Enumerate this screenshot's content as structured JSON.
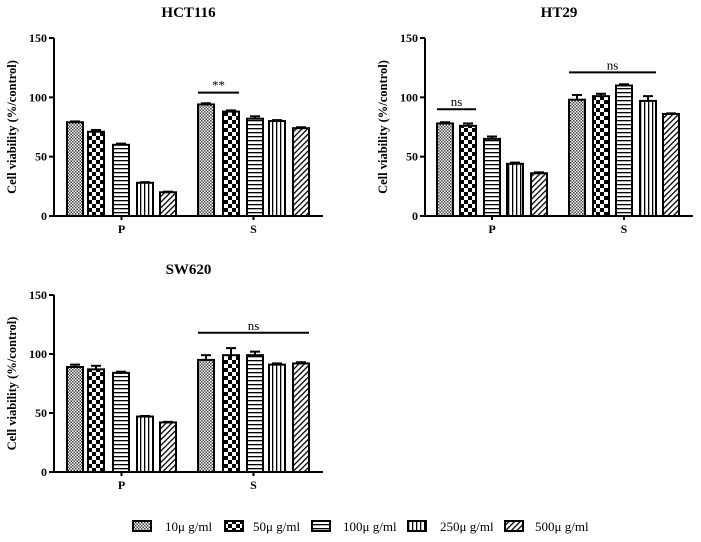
{
  "chart_data": [
    {
      "type": "bar",
      "title": "HCT116",
      "ylabel": "Cell viability (%/control)",
      "xlabel": "",
      "ylim": [
        0,
        150
      ],
      "yticks": [
        0,
        50,
        100,
        150
      ],
      "categories": [
        "P",
        "S"
      ],
      "series": [
        {
          "name": "10μ g/ml",
          "values": [
            79,
            94
          ],
          "errors": [
            0.7,
            1
          ]
        },
        {
          "name": "50μ g/ml",
          "values": [
            71,
            88
          ],
          "errors": [
            1.5,
            1
          ]
        },
        {
          "name": "100μ g/ml",
          "values": [
            60,
            82
          ],
          "errors": [
            1,
            2
          ]
        },
        {
          "name": "250μ g/ml",
          "values": [
            28,
            80
          ],
          "errors": [
            0.5,
            0.8
          ]
        },
        {
          "name": "500μ g/ml",
          "values": [
            20,
            74
          ],
          "errors": [
            0.5,
            0.8
          ]
        }
      ],
      "annotations": [
        {
          "text": "**",
          "category": "S",
          "from_series": 0,
          "to_series": 1,
          "y": 104
        }
      ]
    },
    {
      "type": "bar",
      "title": "HT29",
      "ylabel": "Cell viability (%/control)",
      "xlabel": "",
      "ylim": [
        0,
        150
      ],
      "yticks": [
        0,
        50,
        100,
        150
      ],
      "categories": [
        "P",
        "S"
      ],
      "series": [
        {
          "name": "10μ g/ml",
          "values": [
            78,
            98
          ],
          "errors": [
            1,
            4
          ]
        },
        {
          "name": "50μ g/ml",
          "values": [
            76,
            101
          ],
          "errors": [
            2,
            2
          ]
        },
        {
          "name": "100μ g/ml",
          "values": [
            65,
            110
          ],
          "errors": [
            2,
            1
          ]
        },
        {
          "name": "250μ g/ml",
          "values": [
            44,
            97
          ],
          "errors": [
            1,
            4
          ]
        },
        {
          "name": "500μ g/ml",
          "values": [
            36,
            86
          ],
          "errors": [
            0.8,
            0.5
          ]
        }
      ],
      "annotations": [
        {
          "text": "ns",
          "category": "P",
          "from_series": 0,
          "to_series": 1,
          "y": 90
        },
        {
          "text": "ns",
          "category": "S",
          "from_series": 0,
          "to_series": 3,
          "y": 121
        }
      ]
    },
    {
      "type": "bar",
      "title": "SW620",
      "ylabel": "Cell viability (%/control)",
      "xlabel": "",
      "ylim": [
        0,
        150
      ],
      "yticks": [
        0,
        50,
        100,
        150
      ],
      "categories": [
        "P",
        "S"
      ],
      "series": [
        {
          "name": "10μ g/ml",
          "values": [
            89,
            95
          ],
          "errors": [
            2,
            4
          ]
        },
        {
          "name": "50μ g/ml",
          "values": [
            87,
            99
          ],
          "errors": [
            3,
            6
          ]
        },
        {
          "name": "100μ g/ml",
          "values": [
            84,
            99
          ],
          "errors": [
            1,
            3
          ]
        },
        {
          "name": "250μ g/ml",
          "values": [
            47,
            91
          ],
          "errors": [
            0.5,
            1
          ]
        },
        {
          "name": "500μ g/ml",
          "values": [
            42,
            92
          ],
          "errors": [
            0.5,
            1
          ]
        }
      ],
      "annotations": [
        {
          "text": "ns",
          "category": "S",
          "from_series": 0,
          "to_series": 4,
          "y": 118
        }
      ]
    }
  ],
  "legend": {
    "position": "bottom",
    "items": [
      {
        "label": "10μ g/ml",
        "pattern": "fine-checker"
      },
      {
        "label": "50μ g/ml",
        "pattern": "checkerboard"
      },
      {
        "label": "100μ g/ml",
        "pattern": "horizontal-lines"
      },
      {
        "label": "250μ g/ml",
        "pattern": "vertical-lines"
      },
      {
        "label": "500μ g/ml",
        "pattern": "diagonal-lines"
      }
    ]
  },
  "colors": {
    "bar_stroke": "#000000",
    "background": "#ffffff"
  }
}
